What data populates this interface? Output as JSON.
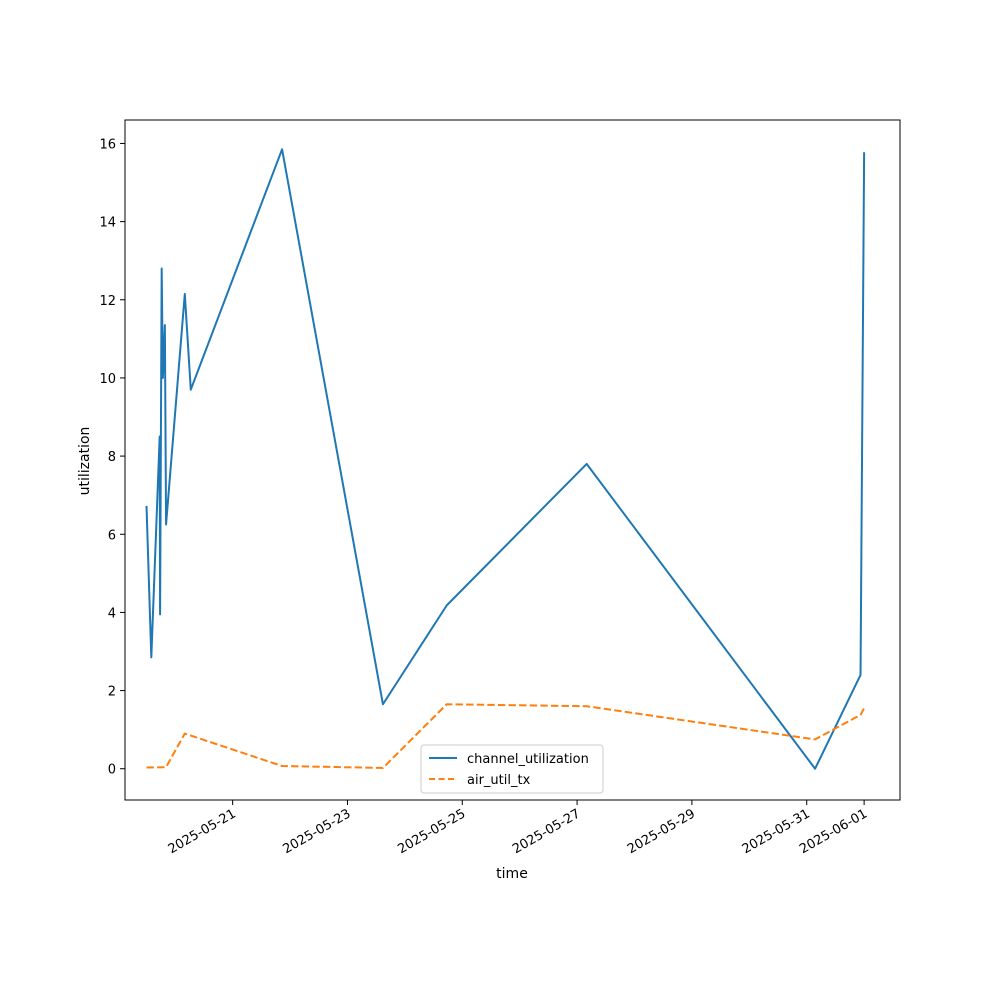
{
  "chart_data": {
    "type": "line",
    "title": "",
    "xlabel": "time",
    "ylabel": "utilization",
    "x_tick_labels": [
      "2025-05-21",
      "2025-05-23",
      "2025-05-25",
      "2025-05-27",
      "2025-05-29",
      "2025-05-31",
      "2025-06-01"
    ],
    "x_tick_dates": [
      "2025-05-21",
      "2025-05-23",
      "2025-05-25",
      "2025-05-27",
      "2025-05-29",
      "2025-05-31",
      "2025-06-01"
    ],
    "xlim": [
      "2025-05-19T03:00",
      "2025-06-01T15:00"
    ],
    "y_ticks": [
      0,
      2,
      4,
      6,
      8,
      10,
      12,
      14,
      16
    ],
    "ylim": [
      -0.8,
      16.6
    ],
    "grid": false,
    "legend_position": "lower-center",
    "series": [
      {
        "name": "channel_utilization",
        "color": "#1f77b4",
        "style": "solid",
        "points": [
          [
            "2025-05-19T12:00",
            6.7
          ],
          [
            "2025-05-19T14:00",
            2.85
          ],
          [
            "2025-05-19T17:30",
            8.5
          ],
          [
            "2025-05-19T17:40",
            3.95
          ],
          [
            "2025-05-19T18:20",
            12.8
          ],
          [
            "2025-05-19T18:50",
            10.0
          ],
          [
            "2025-05-19T19:40",
            11.35
          ],
          [
            "2025-05-19T20:10",
            6.25
          ],
          [
            "2025-05-20T04:00",
            12.15
          ],
          [
            "2025-05-20T06:30",
            9.7
          ],
          [
            "2025-05-21T20:40",
            15.85
          ],
          [
            "2025-05-23T14:50",
            1.65
          ],
          [
            "2025-05-24T17:30",
            4.18
          ],
          [
            "2025-05-27T04:00",
            7.8
          ],
          [
            "2025-05-31T03:30",
            0.0
          ],
          [
            "2025-05-31T22:30",
            2.4
          ],
          [
            "2025-06-01T00:00",
            15.75
          ]
        ]
      },
      {
        "name": "air_util_tx",
        "color": "#ff7f0e",
        "style": "dashed",
        "points": [
          [
            "2025-05-19T12:00",
            0.03
          ],
          [
            "2025-05-19T20:10",
            0.04
          ],
          [
            "2025-05-20T04:00",
            0.9
          ],
          [
            "2025-05-21T20:40",
            0.07
          ],
          [
            "2025-05-23T14:50",
            0.02
          ],
          [
            "2025-05-24T17:30",
            1.65
          ],
          [
            "2025-05-27T04:00",
            1.6
          ],
          [
            "2025-05-31T03:30",
            0.75
          ],
          [
            "2025-05-31T22:30",
            1.38
          ],
          [
            "2025-06-01T00:00",
            1.55
          ]
        ]
      }
    ]
  }
}
